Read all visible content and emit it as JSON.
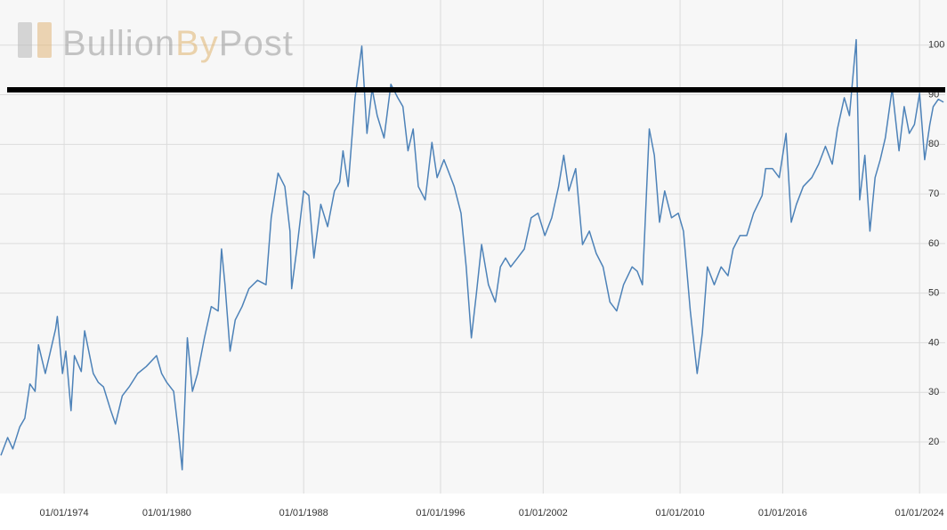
{
  "chart_data": {
    "type": "line",
    "watermark": [
      "Bullion",
      "By",
      "Post"
    ],
    "color": "#4d82b8",
    "grid": true,
    "xlim": [
      1970.25,
      2025.5
    ],
    "ylim": [
      9.6,
      109.1
    ],
    "xticks": [
      {
        "value": 1974,
        "label": "01/01/1974"
      },
      {
        "value": 1980,
        "label": "01/01/1980"
      },
      {
        "value": 1988,
        "label": "01/01/1988"
      },
      {
        "value": 1996,
        "label": "01/01/1996"
      },
      {
        "value": 2002,
        "label": "01/01/2002"
      },
      {
        "value": 2010,
        "label": "01/01/2010"
      },
      {
        "value": 2016,
        "label": "01/01/2016"
      },
      {
        "value": 2024,
        "label": "01/01/2024"
      }
    ],
    "yticks": [
      20,
      30,
      40,
      50,
      60,
      70,
      80,
      90,
      100
    ],
    "hline": {
      "value": 91,
      "color": "#000000"
    },
    "x": [
      1970.3,
      1970.7,
      1971.0,
      1971.4,
      1971.7,
      1972.0,
      1972.3,
      1972.5,
      1972.9,
      1973.2,
      1973.5,
      1973.6,
      1973.9,
      1974.1,
      1974.4,
      1974.6,
      1975.0,
      1975.2,
      1975.7,
      1976.0,
      1976.3,
      1976.7,
      1977.0,
      1977.4,
      1977.8,
      1978.3,
      1978.8,
      1979.4,
      1979.7,
      1980.0,
      1980.4,
      1980.7,
      1980.9,
      1981.2,
      1981.5,
      1981.8,
      1982.2,
      1982.6,
      1983.0,
      1983.2,
      1983.4,
      1983.7,
      1984.0,
      1984.4,
      1984.8,
      1985.3,
      1985.8,
      1986.1,
      1986.5,
      1986.9,
      1987.2,
      1987.3,
      1987.6,
      1988.0,
      1988.3,
      1988.6,
      1989.0,
      1989.4,
      1989.8,
      1990.1,
      1990.3,
      1990.6,
      1991.0,
      1991.4,
      1991.7,
      1992.0,
      1992.3,
      1992.7,
      1993.1,
      1993.5,
      1993.8,
      1994.1,
      1994.4,
      1994.7,
      1995.1,
      1995.5,
      1995.8,
      1996.2,
      1996.8,
      1997.2,
      1997.5,
      1997.8,
      1998.1,
      1998.4,
      1998.8,
      1999.2,
      1999.5,
      1999.8,
      2000.1,
      2000.5,
      2000.9,
      2001.3,
      2001.7,
      2002.1,
      2002.5,
      2002.9,
      2003.2,
      2003.5,
      2003.9,
      2004.3,
      2004.7,
      2005.1,
      2005.5,
      2005.9,
      2006.3,
      2006.7,
      2007.2,
      2007.5,
      2007.8,
      2008.2,
      2008.5,
      2008.8,
      2009.1,
      2009.5,
      2009.9,
      2010.2,
      2010.6,
      2011.0,
      2011.3,
      2011.6,
      2012.0,
      2012.4,
      2012.8,
      2013.1,
      2013.5,
      2013.9,
      2014.3,
      2014.8,
      2015.0,
      2015.4,
      2015.8,
      2016.2,
      2016.5,
      2016.8,
      2017.2,
      2017.7,
      2018.1,
      2018.5,
      2018.9,
      2019.2,
      2019.6,
      2019.9,
      2020.3,
      2020.5,
      2020.8,
      2021.1,
      2021.4,
      2021.7,
      2022.0,
      2022.4,
      2022.8,
      2023.1,
      2023.4,
      2023.7,
      2024.0,
      2024.3,
      2024.6,
      2024.8,
      2025.1,
      2025.4
    ],
    "values": [
      17.3,
      20.9,
      18.6,
      23,
      24.8,
      31.7,
      30.2,
      39.6,
      33.8,
      38.3,
      42.8,
      45.3,
      33.8,
      38.3,
      26.3,
      37.4,
      34.2,
      42.4,
      33.8,
      32,
      31.1,
      26.6,
      23.6,
      29.3,
      31.1,
      33.8,
      35.2,
      37.4,
      33.8,
      32,
      30.2,
      21.3,
      14.4,
      41,
      30.2,
      33.8,
      41,
      47.3,
      46.4,
      58.9,
      51.7,
      38.3,
      44.6,
      47.3,
      50.9,
      52.6,
      51.7,
      65.2,
      74.2,
      71.5,
      62.5,
      50.9,
      58.9,
      70.6,
      69.7,
      57.1,
      67.9,
      63.4,
      70.6,
      72.4,
      78.7,
      71.5,
      89.4,
      99.8,
      82.2,
      91.2,
      85.8,
      81.3,
      92.1,
      89.4,
      87.6,
      78.7,
      83.1,
      71.5,
      68.8,
      80.4,
      73.3,
      76.9,
      71.5,
      66.1,
      55.3,
      41,
      50,
      59.8,
      51.7,
      48.2,
      55.3,
      57.1,
      55.3,
      57.1,
      58.9,
      65.2,
      66.1,
      61.6,
      65.2,
      71.5,
      77.8,
      70.6,
      75.1,
      59.8,
      62.5,
      58,
      55.3,
      48.2,
      46.4,
      51.7,
      55.3,
      54.4,
      51.7,
      83.1,
      77.8,
      64.3,
      70.6,
      65.2,
      66.1,
      62.5,
      46.4,
      33.8,
      41.9,
      55.3,
      51.7,
      55.3,
      53.5,
      58.9,
      61.6,
      61.6,
      66.1,
      69.7,
      75.1,
      75.1,
      73.3,
      82.2,
      64.3,
      67.9,
      71.5,
      73.3,
      76,
      79.6,
      76,
      83.1,
      89.4,
      85.8,
      101.1,
      68.8,
      77.8,
      62.5,
      73.3,
      76.9,
      81.3,
      91.2,
      78.7,
      87.6,
      82.2,
      84,
      90.3,
      76.9,
      84,
      87.6,
      89.1,
      88.5
    ]
  }
}
